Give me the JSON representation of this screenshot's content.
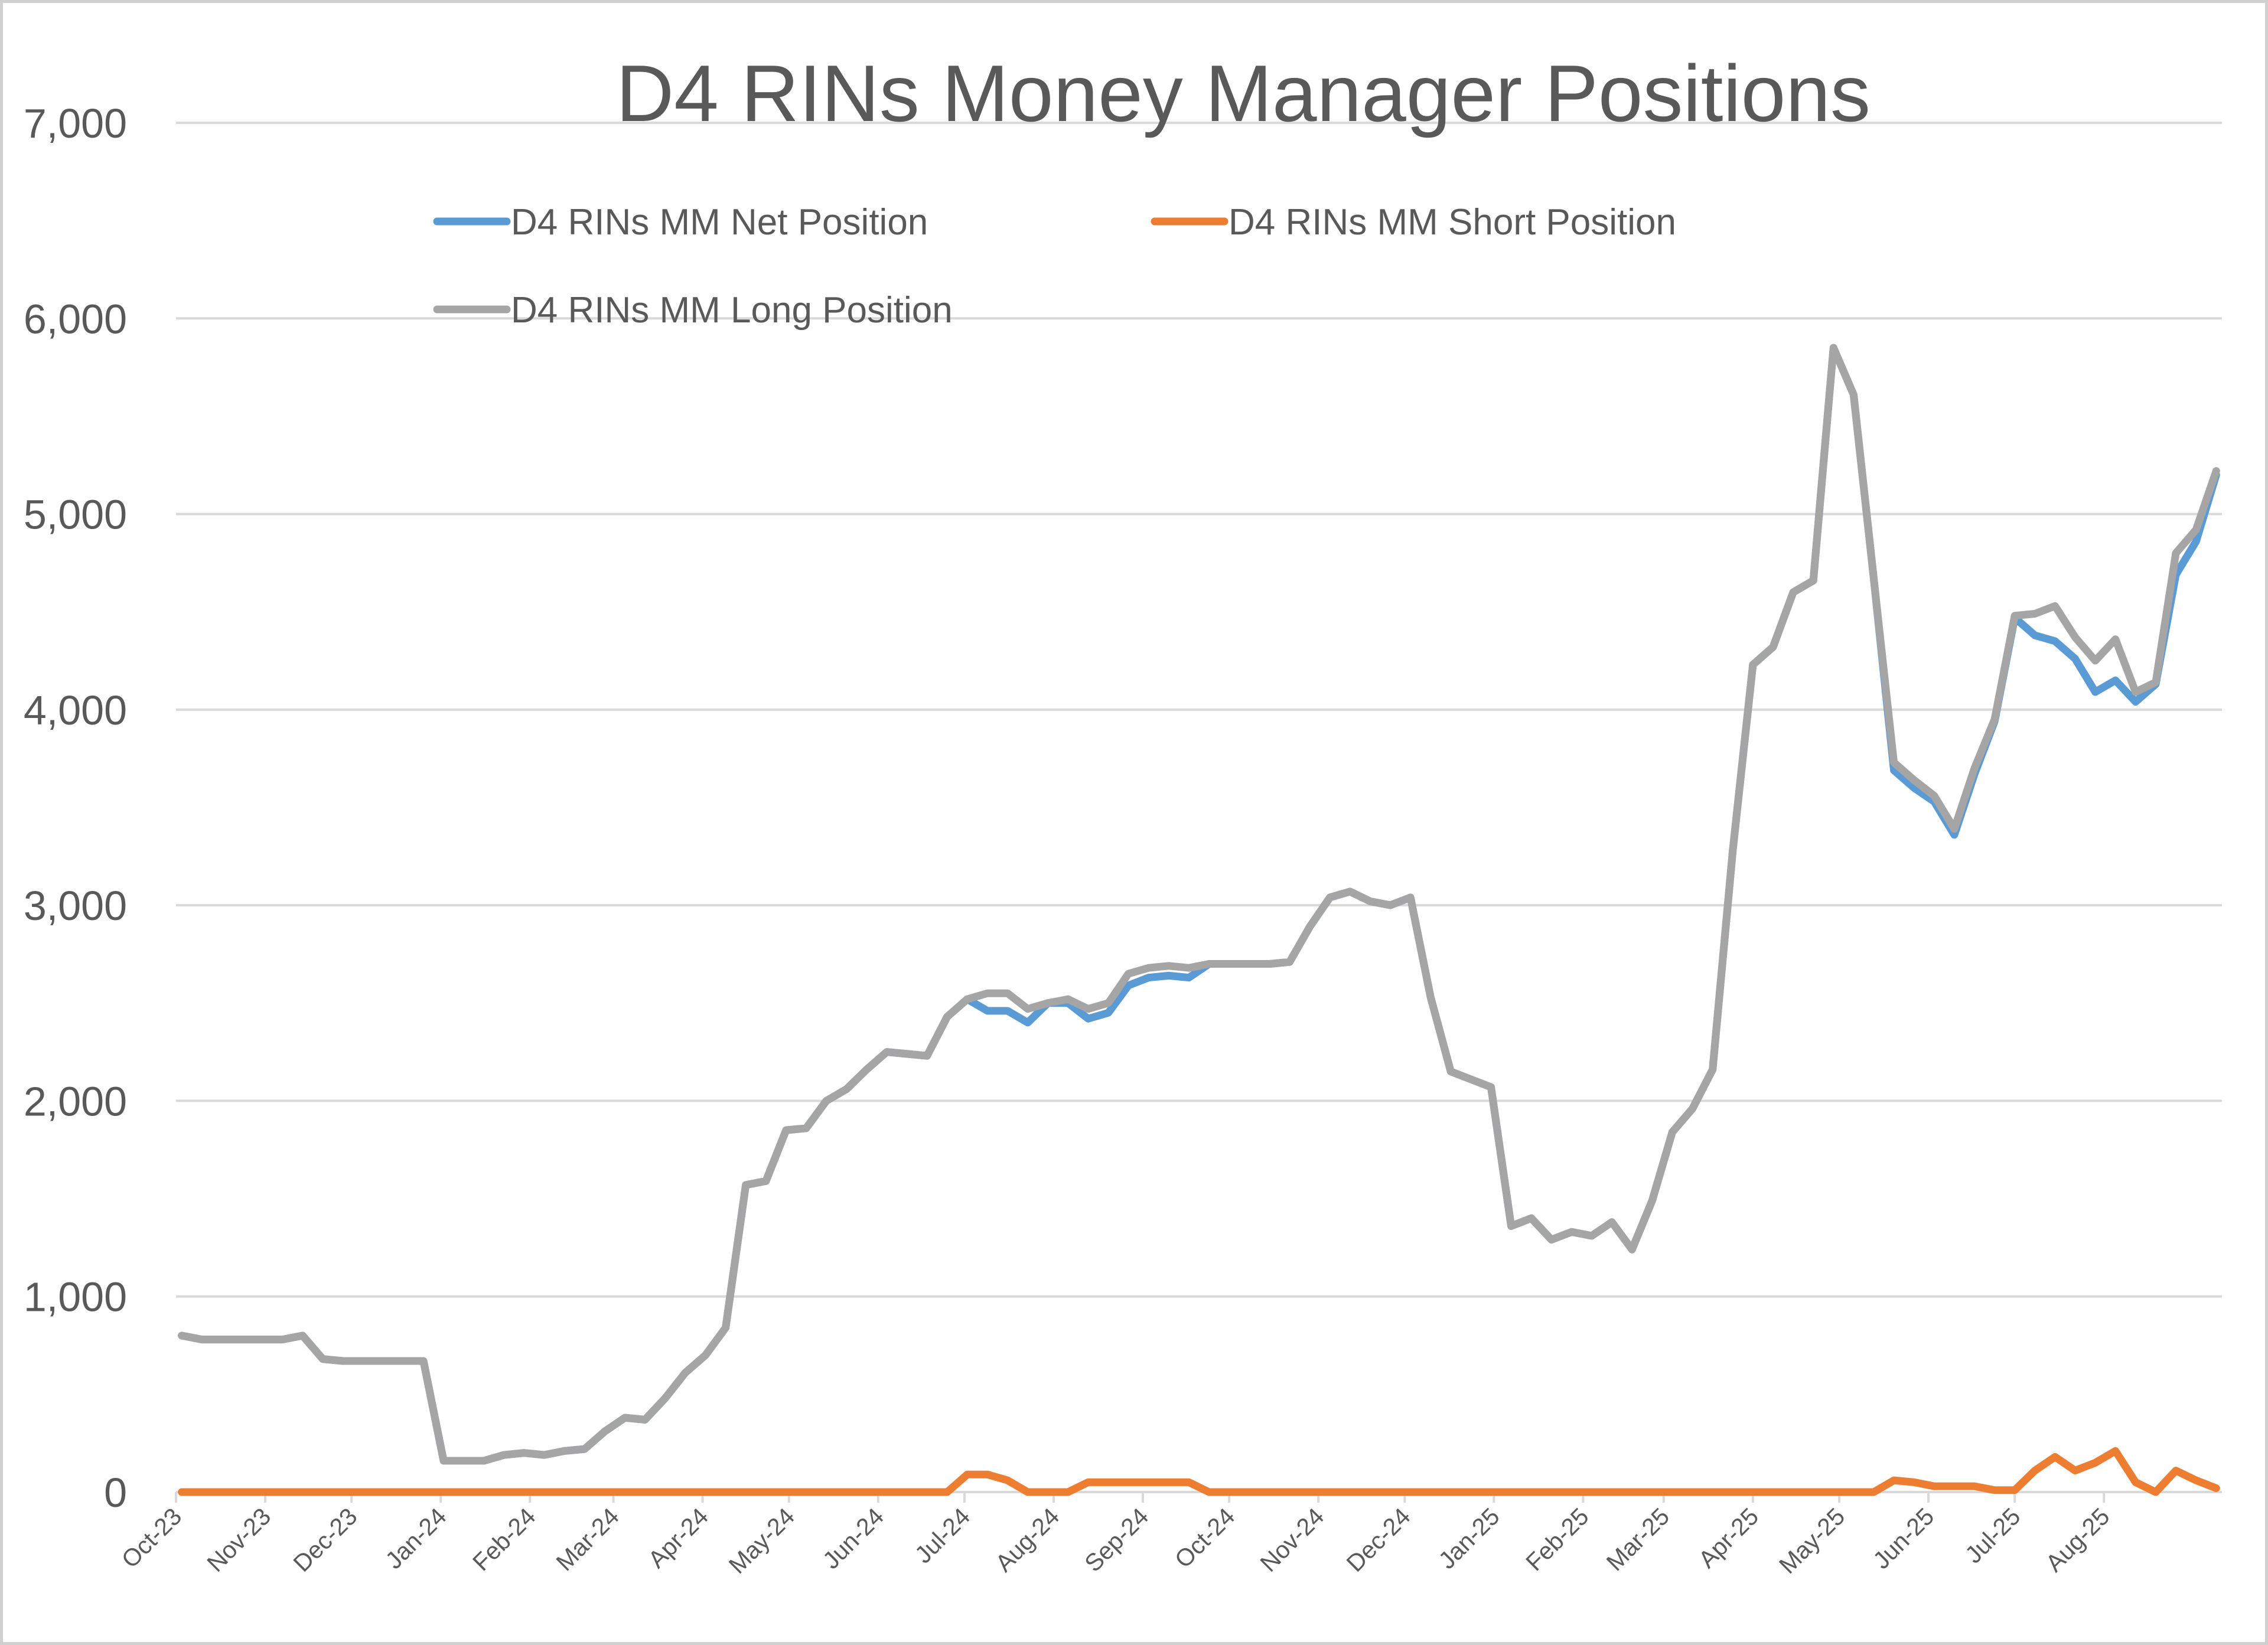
{
  "chart_data": {
    "type": "line",
    "title": "D4 RINs Money Manager Positions",
    "xlabel": "",
    "ylabel": "",
    "ylim": [
      0,
      7000
    ],
    "yticks": [
      "0",
      "1,000",
      "2,000",
      "3,000",
      "4,000",
      "5,000",
      "6,000",
      "7,000"
    ],
    "xticks": [
      "Oct-23",
      "Nov-23",
      "Dec-23",
      "Jan-24",
      "Feb-24",
      "Mar-24",
      "Apr-24",
      "May-24",
      "Jun-24",
      "Jul-24",
      "Aug-24",
      "Sep-24",
      "Oct-24",
      "Nov-24",
      "Dec-24",
      "Jan-25",
      "Feb-25",
      "Mar-25",
      "Apr-25",
      "May-25",
      "Jun-25",
      "Jul-25",
      "Aug-25"
    ],
    "grid": true,
    "legend_position": "top",
    "series": [
      {
        "name": "D4 RINs MM Net Position",
        "color": "#5B9BD5",
        "points": [
          [
            "2023-10-03",
            800
          ],
          [
            "2023-10-10",
            780
          ],
          [
            "2023-10-17",
            780
          ],
          [
            "2023-10-24",
            780
          ],
          [
            "2023-10-31",
            780
          ],
          [
            "2023-11-07",
            780
          ],
          [
            "2023-11-14",
            800
          ],
          [
            "2023-11-21",
            680
          ],
          [
            "2023-11-28",
            670
          ],
          [
            "2023-12-05",
            670
          ],
          [
            "2023-12-12",
            670
          ],
          [
            "2023-12-19",
            670
          ],
          [
            "2023-12-26",
            670
          ],
          [
            "2024-01-02",
            160
          ],
          [
            "2024-01-09",
            160
          ],
          [
            "2024-01-16",
            160
          ],
          [
            "2024-01-23",
            190
          ],
          [
            "2024-01-30",
            200
          ],
          [
            "2024-02-06",
            190
          ],
          [
            "2024-02-13",
            210
          ],
          [
            "2024-02-20",
            220
          ],
          [
            "2024-02-27",
            310
          ],
          [
            "2024-03-05",
            380
          ],
          [
            "2024-03-12",
            370
          ],
          [
            "2024-03-19",
            480
          ],
          [
            "2024-03-26",
            610
          ],
          [
            "2024-04-02",
            700
          ],
          [
            "2024-04-09",
            840
          ],
          [
            "2024-04-16",
            1570
          ],
          [
            "2024-04-23",
            1590
          ],
          [
            "2024-04-30",
            1850
          ],
          [
            "2024-05-07",
            1860
          ],
          [
            "2024-05-14",
            2000
          ],
          [
            "2024-05-21",
            2060
          ],
          [
            "2024-05-28",
            2160
          ],
          [
            "2024-06-04",
            2250
          ],
          [
            "2024-06-11",
            2240
          ],
          [
            "2024-06-18",
            2230
          ],
          [
            "2024-06-25",
            2430
          ],
          [
            "2024-07-02",
            2520
          ],
          [
            "2024-07-09",
            2460
          ],
          [
            "2024-07-16",
            2460
          ],
          [
            "2024-07-23",
            2400
          ],
          [
            "2024-07-30",
            2500
          ],
          [
            "2024-08-06",
            2500
          ],
          [
            "2024-08-13",
            2420
          ],
          [
            "2024-08-20",
            2450
          ],
          [
            "2024-08-27",
            2590
          ],
          [
            "2024-09-03",
            2630
          ],
          [
            "2024-09-10",
            2640
          ],
          [
            "2024-09-17",
            2630
          ],
          [
            "2024-09-24",
            2700
          ],
          [
            "2024-10-01",
            2700
          ],
          [
            "2024-10-08",
            2700
          ],
          [
            "2024-10-15",
            2700
          ],
          [
            "2024-10-22",
            2710
          ],
          [
            "2024-10-29",
            2890
          ],
          [
            "2024-11-05",
            3040
          ],
          [
            "2024-11-12",
            3070
          ],
          [
            "2024-11-19",
            3020
          ],
          [
            "2024-11-26",
            3000
          ],
          [
            "2024-12-03",
            3040
          ],
          [
            "2024-12-10",
            2530
          ],
          [
            "2024-12-17",
            2150
          ],
          [
            "2024-12-24",
            2110
          ],
          [
            "2024-12-31",
            2070
          ],
          [
            "2025-01-07",
            1360
          ],
          [
            "2025-01-14",
            1400
          ],
          [
            "2025-01-21",
            1290
          ],
          [
            "2025-01-28",
            1330
          ],
          [
            "2025-02-04",
            1310
          ],
          [
            "2025-02-11",
            1380
          ],
          [
            "2025-02-18",
            1240
          ],
          [
            "2025-02-25",
            1490
          ],
          [
            "2025-03-04",
            1840
          ],
          [
            "2025-03-11",
            1960
          ],
          [
            "2025-03-18",
            2160
          ],
          [
            "2025-03-25",
            3280
          ],
          [
            "2025-04-01",
            4230
          ],
          [
            "2025-04-08",
            4320
          ],
          [
            "2025-04-15",
            4600
          ],
          [
            "2025-04-22",
            4660
          ],
          [
            "2025-04-29",
            5850
          ],
          [
            "2025-05-06",
            5610
          ],
          [
            "2025-05-13",
            4670
          ],
          [
            "2025-05-20",
            3690
          ],
          [
            "2025-05-27",
            3600
          ],
          [
            "2025-06-03",
            3530
          ],
          [
            "2025-06-10",
            3360
          ],
          [
            "2025-06-17",
            3670
          ],
          [
            "2025-06-24",
            3940
          ],
          [
            "2025-07-01",
            4470
          ],
          [
            "2025-07-08",
            4380
          ],
          [
            "2025-07-15",
            4350
          ],
          [
            "2025-07-22",
            4260
          ],
          [
            "2025-07-29",
            4090
          ],
          [
            "2025-08-05",
            4150
          ],
          [
            "2025-08-12",
            4040
          ],
          [
            "2025-08-19",
            4130
          ],
          [
            "2025-08-26",
            4690
          ],
          [
            "2025-09-02",
            4860
          ],
          [
            "2025-09-09",
            5200
          ]
        ]
      },
      {
        "name": "D4 RINs MM Short Position",
        "color": "#ED7D31",
        "points": [
          [
            "2023-10-03",
            0
          ],
          [
            "2023-10-31",
            0
          ],
          [
            "2023-11-28",
            0
          ],
          [
            "2023-12-26",
            0
          ],
          [
            "2024-01-23",
            0
          ],
          [
            "2024-02-20",
            0
          ],
          [
            "2024-03-19",
            0
          ],
          [
            "2024-04-16",
            0
          ],
          [
            "2024-05-14",
            0
          ],
          [
            "2024-06-11",
            0
          ],
          [
            "2024-06-25",
            0
          ],
          [
            "2024-07-02",
            90
          ],
          [
            "2024-07-09",
            90
          ],
          [
            "2024-07-16",
            60
          ],
          [
            "2024-07-23",
            0
          ],
          [
            "2024-07-30",
            0
          ],
          [
            "2024-08-06",
            0
          ],
          [
            "2024-08-13",
            50
          ],
          [
            "2024-08-20",
            50
          ],
          [
            "2024-08-27",
            50
          ],
          [
            "2024-09-03",
            50
          ],
          [
            "2024-09-10",
            50
          ],
          [
            "2024-09-17",
            50
          ],
          [
            "2024-09-24",
            0
          ],
          [
            "2024-10-22",
            0
          ],
          [
            "2024-11-19",
            0
          ],
          [
            "2024-12-17",
            0
          ],
          [
            "2025-01-14",
            0
          ],
          [
            "2025-02-11",
            0
          ],
          [
            "2025-03-11",
            0
          ],
          [
            "2025-04-08",
            0
          ],
          [
            "2025-05-06",
            0
          ],
          [
            "2025-05-13",
            0
          ],
          [
            "2025-05-20",
            60
          ],
          [
            "2025-05-27",
            50
          ],
          [
            "2025-06-03",
            30
          ],
          [
            "2025-06-10",
            30
          ],
          [
            "2025-06-17",
            30
          ],
          [
            "2025-06-24",
            10
          ],
          [
            "2025-07-01",
            10
          ],
          [
            "2025-07-08",
            110
          ],
          [
            "2025-07-15",
            180
          ],
          [
            "2025-07-22",
            110
          ],
          [
            "2025-07-29",
            150
          ],
          [
            "2025-08-05",
            210
          ],
          [
            "2025-08-12",
            50
          ],
          [
            "2025-08-19",
            0
          ],
          [
            "2025-08-26",
            110
          ],
          [
            "2025-09-02",
            60
          ],
          [
            "2025-09-09",
            20
          ]
        ]
      },
      {
        "name": "D4 RINs MM Long Position",
        "color": "#A5A5A5",
        "points": [
          [
            "2023-10-03",
            800
          ],
          [
            "2023-10-10",
            780
          ],
          [
            "2023-10-17",
            780
          ],
          [
            "2023-10-24",
            780
          ],
          [
            "2023-10-31",
            780
          ],
          [
            "2023-11-07",
            780
          ],
          [
            "2023-11-14",
            800
          ],
          [
            "2023-11-21",
            680
          ],
          [
            "2023-11-28",
            670
          ],
          [
            "2023-12-05",
            670
          ],
          [
            "2023-12-12",
            670
          ],
          [
            "2023-12-19",
            670
          ],
          [
            "2023-12-26",
            670
          ],
          [
            "2024-01-02",
            160
          ],
          [
            "2024-01-09",
            160
          ],
          [
            "2024-01-16",
            160
          ],
          [
            "2024-01-23",
            190
          ],
          [
            "2024-01-30",
            200
          ],
          [
            "2024-02-06",
            190
          ],
          [
            "2024-02-13",
            210
          ],
          [
            "2024-02-20",
            220
          ],
          [
            "2024-02-27",
            310
          ],
          [
            "2024-03-05",
            380
          ],
          [
            "2024-03-12",
            370
          ],
          [
            "2024-03-19",
            480
          ],
          [
            "2024-03-26",
            610
          ],
          [
            "2024-04-02",
            700
          ],
          [
            "2024-04-09",
            840
          ],
          [
            "2024-04-16",
            1570
          ],
          [
            "2024-04-23",
            1590
          ],
          [
            "2024-04-30",
            1850
          ],
          [
            "2024-05-07",
            1860
          ],
          [
            "2024-05-14",
            2000
          ],
          [
            "2024-05-21",
            2060
          ],
          [
            "2024-05-28",
            2160
          ],
          [
            "2024-06-04",
            2250
          ],
          [
            "2024-06-11",
            2240
          ],
          [
            "2024-06-18",
            2230
          ],
          [
            "2024-06-25",
            2430
          ],
          [
            "2024-07-02",
            2520
          ],
          [
            "2024-07-09",
            2550
          ],
          [
            "2024-07-16",
            2550
          ],
          [
            "2024-07-23",
            2470
          ],
          [
            "2024-07-30",
            2500
          ],
          [
            "2024-08-06",
            2520
          ],
          [
            "2024-08-13",
            2470
          ],
          [
            "2024-08-20",
            2500
          ],
          [
            "2024-08-27",
            2650
          ],
          [
            "2024-09-03",
            2680
          ],
          [
            "2024-09-10",
            2690
          ],
          [
            "2024-09-17",
            2680
          ],
          [
            "2024-09-24",
            2700
          ],
          [
            "2024-10-01",
            2700
          ],
          [
            "2024-10-08",
            2700
          ],
          [
            "2024-10-15",
            2700
          ],
          [
            "2024-10-22",
            2710
          ],
          [
            "2024-10-29",
            2890
          ],
          [
            "2024-11-05",
            3040
          ],
          [
            "2024-11-12",
            3070
          ],
          [
            "2024-11-19",
            3020
          ],
          [
            "2024-11-26",
            3000
          ],
          [
            "2024-12-03",
            3040
          ],
          [
            "2024-12-10",
            2530
          ],
          [
            "2024-12-17",
            2150
          ],
          [
            "2024-12-24",
            2110
          ],
          [
            "2024-12-31",
            2070
          ],
          [
            "2025-01-07",
            1360
          ],
          [
            "2025-01-14",
            1400
          ],
          [
            "2025-01-21",
            1290
          ],
          [
            "2025-01-28",
            1330
          ],
          [
            "2025-02-04",
            1310
          ],
          [
            "2025-02-11",
            1380
          ],
          [
            "2025-02-18",
            1240
          ],
          [
            "2025-02-25",
            1490
          ],
          [
            "2025-03-04",
            1840
          ],
          [
            "2025-03-11",
            1960
          ],
          [
            "2025-03-18",
            2160
          ],
          [
            "2025-03-25",
            3280
          ],
          [
            "2025-04-01",
            4230
          ],
          [
            "2025-04-08",
            4320
          ],
          [
            "2025-04-15",
            4600
          ],
          [
            "2025-04-22",
            4660
          ],
          [
            "2025-04-29",
            5850
          ],
          [
            "2025-05-06",
            5610
          ],
          [
            "2025-05-13",
            4670
          ],
          [
            "2025-05-20",
            3730
          ],
          [
            "2025-05-27",
            3640
          ],
          [
            "2025-06-03",
            3560
          ],
          [
            "2025-06-10",
            3390
          ],
          [
            "2025-06-17",
            3700
          ],
          [
            "2025-06-24",
            3950
          ],
          [
            "2025-07-01",
            4480
          ],
          [
            "2025-07-08",
            4490
          ],
          [
            "2025-07-15",
            4530
          ],
          [
            "2025-07-22",
            4370
          ],
          [
            "2025-07-29",
            4250
          ],
          [
            "2025-08-05",
            4360
          ],
          [
            "2025-08-12",
            4090
          ],
          [
            "2025-08-19",
            4140
          ],
          [
            "2025-08-26",
            4800
          ],
          [
            "2025-09-02",
            4920
          ],
          [
            "2025-09-09",
            5220
          ]
        ]
      }
    ]
  }
}
